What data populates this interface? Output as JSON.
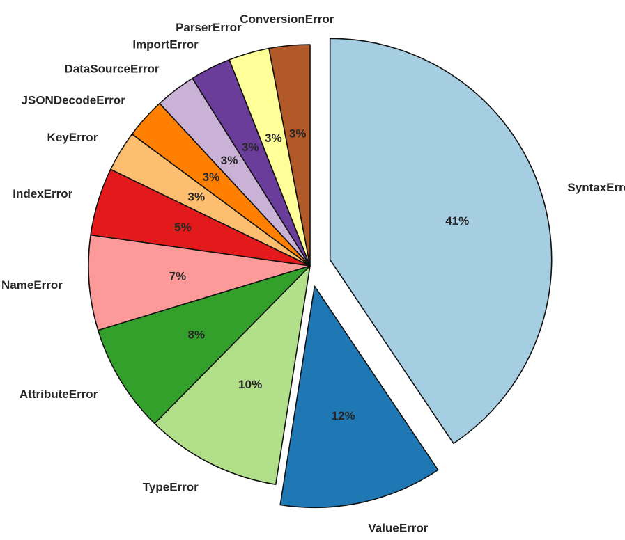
{
  "chart_data": {
    "type": "pie",
    "title": "",
    "slices": [
      {
        "label": "SyntaxError",
        "value": 41,
        "pct_text": "41%",
        "color": "#a6cee3",
        "explode": true
      },
      {
        "label": "ValueError",
        "value": 12,
        "pct_text": "12%",
        "color": "#1f78b4",
        "explode": true
      },
      {
        "label": "TypeError",
        "value": 10,
        "pct_text": "10%",
        "color": "#b2df8a",
        "explode": false
      },
      {
        "label": "AttributeError",
        "value": 8,
        "pct_text": "8%",
        "color": "#33a02c",
        "explode": false
      },
      {
        "label": "NameError",
        "value": 7,
        "pct_text": "7%",
        "color": "#fb9a99",
        "explode": false
      },
      {
        "label": "IndexError",
        "value": 5,
        "pct_text": "5%",
        "color": "#e31a1c",
        "explode": false
      },
      {
        "label": "KeyError",
        "value": 3,
        "pct_text": "3%",
        "color": "#fdbf6f",
        "explode": false
      },
      {
        "label": "JSONDecodeError",
        "value": 3,
        "pct_text": "3%",
        "color": "#ff7f00",
        "explode": false
      },
      {
        "label": "DataSourceError",
        "value": 3,
        "pct_text": "3%",
        "color": "#cab2d6",
        "explode": false
      },
      {
        "label": "ImportError",
        "value": 3,
        "pct_text": "3%",
        "color": "#6a3d9a",
        "explode": false
      },
      {
        "label": "ParserError",
        "value": 3,
        "pct_text": "3%",
        "color": "#ffff99",
        "explode": false
      },
      {
        "label": "ConversionError",
        "value": 3,
        "pct_text": "3%",
        "color": "#b15928",
        "explode": false
      }
    ],
    "start_angle_deg": 90,
    "direction": "clockwise",
    "edge_color": "#111111"
  }
}
